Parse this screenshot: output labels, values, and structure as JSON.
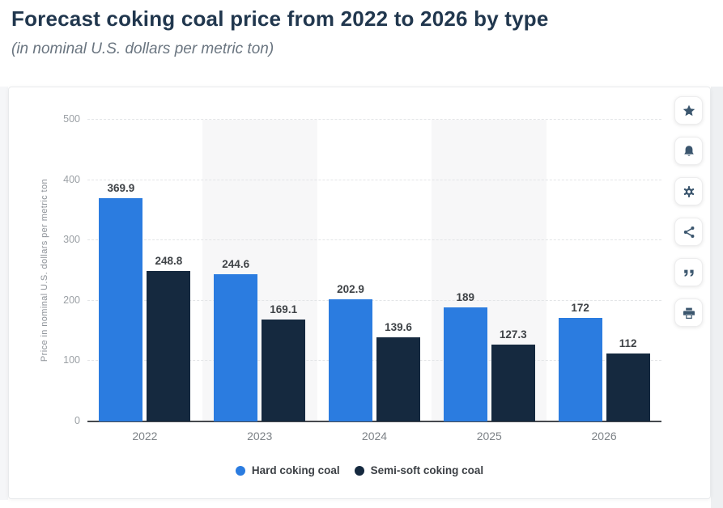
{
  "page": {
    "title": "Forecast coking coal price from 2022 to 2026 by type",
    "subtitle": "(in nominal U.S. dollars per metric ton)"
  },
  "toolbar": {
    "buttons": [
      {
        "icon": "star-icon",
        "name": "favorite-button"
      },
      {
        "icon": "bell-icon",
        "name": "alert-button"
      },
      {
        "icon": "gear-icon",
        "name": "settings-button"
      },
      {
        "icon": "share-icon",
        "name": "share-button"
      },
      {
        "icon": "quote-icon",
        "name": "cite-button"
      },
      {
        "icon": "print-icon",
        "name": "print-button"
      }
    ]
  },
  "chart_data": {
    "type": "bar",
    "title": "Forecast coking coal price from 2022 to 2026 by type",
    "subtitle": "(in nominal U.S. dollars per metric ton)",
    "categories": [
      "2022",
      "2023",
      "2024",
      "2025",
      "2026"
    ],
    "series": [
      {
        "name": "Hard coking coal",
        "color": "#2b7ce0",
        "values": [
          369.9,
          244.6,
          202.9,
          189,
          172
        ]
      },
      {
        "name": "Semi-soft coking coal",
        "color": "#15293f",
        "values": [
          248.8,
          169.1,
          139.6,
          127.3,
          112
        ]
      }
    ],
    "data_labels": {
      "hard_coking_coal": [
        "369.9",
        "244.6",
        "202.9",
        "189",
        "172"
      ],
      "semi_soft_coking_coal": [
        "248.8",
        "169.1",
        "139.6",
        "127.3",
        "112"
      ]
    },
    "xlabel": "",
    "ylabel": "Price in nominal U.S. dollars per metric ton",
    "yticks": [
      0,
      100,
      200,
      300,
      400,
      500
    ],
    "ylim": [
      0,
      500
    ],
    "grid": true,
    "shaded_columns": [
      1,
      3
    ],
    "legend_position": "bottom",
    "colors": {
      "band": "#f7f7f8",
      "gridline": "#e3e5e7",
      "axis_line": "#46494e",
      "tick_text": "#9ba0a5",
      "data_label_text": "#3f4347"
    }
  }
}
